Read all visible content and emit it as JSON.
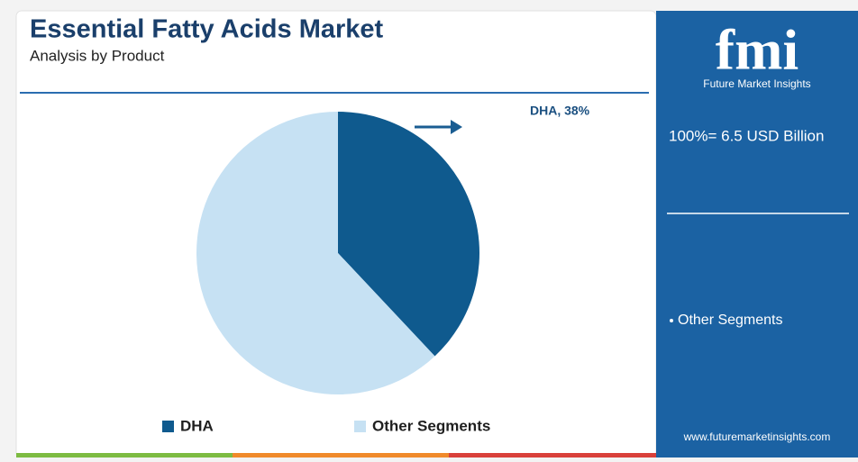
{
  "chart_data": {
    "type": "pie",
    "title": "Essential Fatty Acids Market",
    "subtitle": "Analysis by Product",
    "categories": [
      "DHA",
      "Other Segments"
    ],
    "values": [
      38,
      62
    ],
    "value_labels": [
      "DHA, 38%",
      null
    ],
    "colors": [
      "#0f5a8e",
      "#c6e1f3"
    ]
  },
  "side_panel": {
    "logo": "fmi",
    "brand": "Future Market Insights",
    "total_label": "100%= 6.5 USD Billion",
    "note": "Other Segments",
    "website": "www.futuremarketinsights.com"
  }
}
